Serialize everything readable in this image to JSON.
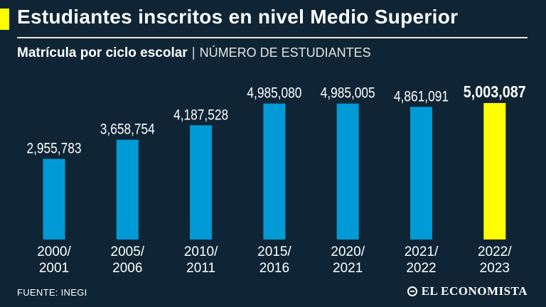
{
  "header": {
    "title": "Estudiantes inscritos en nivel Medio Superior",
    "subtitle_bold": "Matrícula por ciclo escolar",
    "subtitle_separator": "|",
    "subtitle_light": "NÚMERO DE ESTUDIANTES"
  },
  "footer": {
    "source": "FUENTE: INEGI",
    "logo_text": "EL ECONOMISTA"
  },
  "colors": {
    "background": "#0f2535",
    "bar": "#009bd6",
    "highlight_bar": "#ffff00",
    "text": "#ffffff"
  },
  "chart_data": {
    "type": "bar",
    "title": "Estudiantes inscritos en nivel Medio Superior",
    "xlabel": "",
    "ylabel": "NÚMERO DE ESTUDIANTES",
    "categories": [
      "2000/\n2001",
      "2005/\n2006",
      "2010/\n2011",
      "2015/\n2016",
      "2020/\n2021",
      "2021/\n2022",
      "2022/\n2023"
    ],
    "values": [
      2955783,
      3658754,
      4187528,
      4985080,
      4985005,
      4861091,
      5003087
    ],
    "value_labels": [
      "2,955,783",
      "3,658,754",
      "4,187,528",
      "4,985,080",
      "4,985,005",
      "4,861,091",
      "5,003,087"
    ],
    "highlight_index": 6,
    "grid": false,
    "legend": "none"
  }
}
